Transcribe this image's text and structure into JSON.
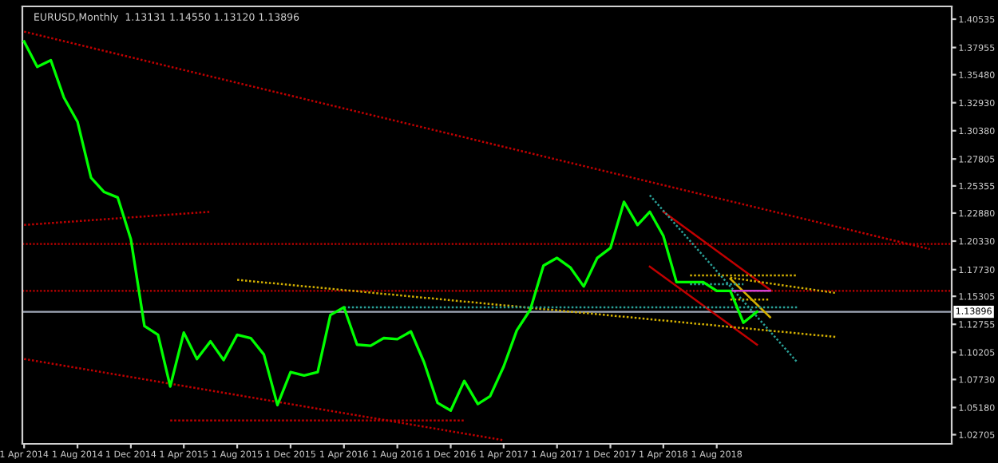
{
  "chart_data": {
    "type": "line",
    "title": "EURUSD,Monthly  1.13131 1.14550 1.13120 1.13896",
    "legend": false,
    "grid": false,
    "marker": "none",
    "line_style": "solid",
    "x": [
      "2014-04",
      "2014-05",
      "2014-06",
      "2014-07",
      "2014-08",
      "2014-09",
      "2014-10",
      "2014-11",
      "2014-12",
      "2015-01",
      "2015-02",
      "2015-03",
      "2015-04",
      "2015-05",
      "2015-06",
      "2015-07",
      "2015-08",
      "2015-09",
      "2015-10",
      "2015-11",
      "2015-12",
      "2016-01",
      "2016-02",
      "2016-03",
      "2016-04",
      "2016-05",
      "2016-06",
      "2016-07",
      "2016-08",
      "2016-09",
      "2016-10",
      "2016-11",
      "2016-12",
      "2017-01",
      "2017-02",
      "2017-03",
      "2017-04",
      "2017-05",
      "2017-06",
      "2017-07",
      "2017-08",
      "2017-09",
      "2017-10",
      "2017-11",
      "2017-12",
      "2018-01",
      "2018-02",
      "2018-03",
      "2018-04",
      "2018-05",
      "2018-06",
      "2018-07",
      "2018-08",
      "2018-09",
      "2018-10",
      "2018-11"
    ],
    "series": [
      {
        "color": "#00ff00",
        "values": [
          1.385,
          1.362,
          1.368,
          1.334,
          1.312,
          1.261,
          1.248,
          1.243,
          1.205,
          1.126,
          1.118,
          1.071,
          1.12,
          1.096,
          1.112,
          1.095,
          1.118,
          1.115,
          1.1,
          1.054,
          1.084,
          1.081,
          1.084,
          1.136,
          1.143,
          1.109,
          1.108,
          1.115,
          1.114,
          1.121,
          1.093,
          1.056,
          1.049,
          1.076,
          1.055,
          1.062,
          1.089,
          1.122,
          1.141,
          1.181,
          1.188,
          1.179,
          1.162,
          1.188,
          1.197,
          1.239,
          1.218,
          1.23,
          1.208,
          1.166,
          1.166,
          1.166,
          1.158,
          1.158,
          1.129,
          1.139
        ]
      },
      {
        "type": "line",
        "line_style": "dotted",
        "color": "#c00000",
        "x": [
          "2014-04",
          "2019-12"
        ],
        "values": [
          1.394,
          1.196
        ]
      },
      {
        "type": "line",
        "line_style": "dotted",
        "color": "#c00000",
        "x": [
          "2014-04",
          "2015-06"
        ],
        "values": [
          1.218,
          1.23
        ]
      },
      {
        "type": "line",
        "line_style": "dotted",
        "color": "#c00000",
        "x": [
          "2014-04",
          "2017-04"
        ],
        "values": [
          1.096,
          1.022
        ]
      },
      {
        "type": "line",
        "line_style": "dotted",
        "color": "#c00000",
        "x": [
          "2015-03",
          "2017-01"
        ],
        "values": [
          1.04,
          1.04
        ]
      },
      {
        "type": "line",
        "line_style": "solid",
        "color": "#c00000",
        "x": [
          "2018-03",
          "2018-11"
        ],
        "values": [
          1.18,
          1.109
        ]
      },
      {
        "type": "line",
        "line_style": "solid",
        "color": "#c00000",
        "x": [
          "2018-04",
          "2018-12"
        ],
        "values": [
          1.23,
          1.159
        ]
      },
      {
        "type": "line",
        "line_style": "dotted",
        "color": "#d4b000",
        "x": [
          "2015-08",
          "2019-05"
        ],
        "values": [
          1.168,
          1.116
        ]
      },
      {
        "type": "line",
        "line_style": "dotted",
        "color": "#d4b000",
        "x": [
          "2018-06",
          "2019-02"
        ],
        "values": [
          1.172,
          1.172
        ]
      },
      {
        "type": "line",
        "line_style": "dotted",
        "color": "#d4b000",
        "x": [
          "2018-09",
          "2019-05"
        ],
        "values": [
          1.17,
          1.156
        ]
      },
      {
        "type": "line",
        "line_style": "dotted",
        "color": "#d4b000",
        "x": [
          "2018-09",
          "2018-12"
        ],
        "values": [
          1.15,
          1.15
        ]
      },
      {
        "type": "line",
        "line_style": "solid",
        "color": "#d4b000",
        "x": [
          "2018-09",
          "2018-12"
        ],
        "values": [
          1.169,
          1.134
        ]
      },
      {
        "type": "line",
        "line_style": "dotted",
        "color": "#2aa198",
        "x": [
          "2016-04",
          "2019-02"
        ],
        "values": [
          1.143,
          1.143
        ]
      },
      {
        "type": "line",
        "line_style": "dotted",
        "color": "#2aa198",
        "x": [
          "2018-06",
          "2018-10"
        ],
        "values": [
          1.164,
          1.164
        ]
      },
      {
        "type": "line",
        "line_style": "dotted",
        "color": "#2aa198",
        "x": [
          "2018-03",
          "2019-02"
        ],
        "values": [
          1.245,
          1.093
        ]
      },
      {
        "type": "line",
        "line_style": "solid",
        "color": "#d040d0",
        "x": [
          "2018-09",
          "2018-12"
        ],
        "values": [
          1.158,
          1.158
        ]
      }
    ],
    "ref_lines": [
      {
        "axis": "y",
        "value": 1.2006,
        "color": "#c00000",
        "line_style": "dotted"
      },
      {
        "axis": "y",
        "value": 1.158,
        "color": "#c00000",
        "line_style": "dotted"
      },
      {
        "axis": "y",
        "value": 1.13896,
        "label": "1.13896",
        "color": "#a0a8b8",
        "line_style": "solid"
      }
    ],
    "xlim": [
      "2014-03-28",
      "2020-01-20"
    ],
    "xticks": [
      {
        "value": "2014-04-01",
        "label": "1 Apr 2014"
      },
      {
        "value": "2014-08-01",
        "label": "1 Aug 2014"
      },
      {
        "value": "2014-12-01",
        "label": "1 Dec 2014"
      },
      {
        "value": "2015-04-01",
        "label": "1 Apr 2015"
      },
      {
        "value": "2015-08-01",
        "label": "1 Aug 2015"
      },
      {
        "value": "2015-12-01",
        "label": "1 Dec 2015"
      },
      {
        "value": "2016-04-01",
        "label": "1 Apr 2016"
      },
      {
        "value": "2016-08-01",
        "label": "1 Aug 2016"
      },
      {
        "value": "2016-12-01",
        "label": "1 Dec 2016"
      },
      {
        "value": "2017-04-01",
        "label": "1 Apr 2017"
      },
      {
        "value": "2017-08-01",
        "label": "1 Aug 2017"
      },
      {
        "value": "2017-12-01",
        "label": "1 Dec 2017"
      },
      {
        "value": "2018-04-01",
        "label": "1 Apr 2018"
      },
      {
        "value": "2018-08-01",
        "label": "1 Aug 2018"
      }
    ],
    "ylim": [
      1.0187,
      1.417
    ],
    "yticks": [
      {
        "value": 1.40535,
        "label": "1.40535"
      },
      {
        "value": 1.37955,
        "label": "1.37955"
      },
      {
        "value": 1.3548,
        "label": "1.35480"
      },
      {
        "value": 1.3293,
        "label": "1.32930"
      },
      {
        "value": 1.3038,
        "label": "1.30380"
      },
      {
        "value": 1.27805,
        "label": "1.27805"
      },
      {
        "value": 1.25355,
        "label": "1.25355"
      },
      {
        "value": 1.2288,
        "label": "1.22880"
      },
      {
        "value": 1.2033,
        "label": "1.20330"
      },
      {
        "value": 1.1773,
        "label": "1.17730"
      },
      {
        "value": 1.15305,
        "label": "1.15305"
      },
      {
        "value": 1.12755,
        "label": "1.12755"
      },
      {
        "value": 1.10205,
        "label": "1.10205"
      },
      {
        "value": 1.0773,
        "label": "1.07730"
      },
      {
        "value": 1.0518,
        "label": "1.05180"
      },
      {
        "value": 1.02705,
        "label": "1.02705"
      }
    ]
  }
}
